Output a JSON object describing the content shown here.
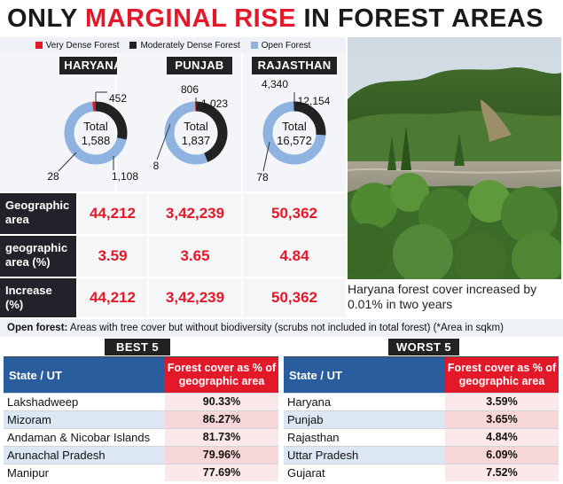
{
  "headline": {
    "part1": "ONLY ",
    "part2": "MARGINAL RISE",
    "part3": " IN FOREST AREAS"
  },
  "colors": {
    "very_dense": "#e3192a",
    "moderately_dense": "#222222",
    "open": "#8fb3e0"
  },
  "legend": [
    "Very Dense Forest",
    "Moderately Dense Forest",
    "Open Forest"
  ],
  "chart_data": [
    {
      "type": "pie",
      "state": "HARYANA",
      "center_label": "Total",
      "total": "1,588",
      "series": [
        {
          "name": "Very Dense Forest",
          "value": 28,
          "label": "28"
        },
        {
          "name": "Moderately Dense Forest",
          "value": 452,
          "label": "452"
        },
        {
          "name": "Open Forest",
          "value": 1108,
          "label": "1,108"
        }
      ]
    },
    {
      "type": "pie",
      "state": "PUNJAB",
      "center_label": "Total",
      "total": "1,837",
      "series": [
        {
          "name": "Very Dense Forest",
          "value": 8,
          "label": "8"
        },
        {
          "name": "Moderately Dense Forest",
          "value": 806,
          "label": "806"
        },
        {
          "name": "Open Forest",
          "value": 1023,
          "label": "1,023"
        }
      ]
    },
    {
      "type": "pie",
      "state": "RAJASTHAN",
      "center_label": "Total",
      "total": "16,572",
      "series": [
        {
          "name": "Very Dense Forest",
          "value": 78,
          "label": "78"
        },
        {
          "name": "Moderately Dense Forest",
          "value": 4340,
          "label": "4,340"
        },
        {
          "name": "Open Forest",
          "value": 12154,
          "label": "12,154"
        }
      ]
    },
    {
      "type": "table",
      "rows": [
        {
          "label": "Geographic area",
          "values": [
            "44,212",
            "3,42,239",
            "50,362"
          ]
        },
        {
          "label": "geographic area (%)",
          "values": [
            "3.59",
            "3.65",
            "4.84"
          ]
        },
        {
          "label": "Increase (%)",
          "values": [
            "44,212",
            "3,42,239",
            "50,362"
          ]
        }
      ]
    },
    {
      "type": "table",
      "title": "BEST 5",
      "columns": [
        "State / UT",
        "Forest cover as % of geographic area"
      ],
      "rows": [
        [
          "Lakshadweep",
          "90.33%"
        ],
        [
          "Mizoram",
          "86.27%"
        ],
        [
          "Andaman & Nicobar Islands",
          "81.73%"
        ],
        [
          "Arunachal Pradesh",
          "79.96%"
        ],
        [
          "Manipur",
          "77.69%"
        ]
      ]
    },
    {
      "type": "table",
      "title": "WORST 5",
      "columns": [
        "State / UT",
        "Forest cover as % of geographic area"
      ],
      "rows": [
        [
          "Haryana",
          "3.59%"
        ],
        [
          "Punjab",
          "3.65%"
        ],
        [
          "Rajasthan",
          "4.84%"
        ],
        [
          "Uttar Pradesh",
          "6.09%"
        ],
        [
          "Gujarat",
          "7.52%"
        ]
      ]
    }
  ],
  "row_labels": {
    "r0a": "Geographic",
    "r0b": "area",
    "r1a": "geographic",
    "r1b": "area (%)",
    "r2a": "Increase",
    "r2b": "(%)"
  },
  "caption": "Haryana forest cover increased by 0.01% in two years",
  "footnote": {
    "bold": "Open forest:",
    "text": " Areas with tree cover but without biodiversity (scrubs not included in total forest)  (*Area in sqkm)"
  },
  "best": {
    "title": "BEST 5",
    "col_state": "State / UT",
    "col_cover": "Forest cover as % of geographic area",
    "rows": [
      {
        "state": "Lakshadweep",
        "value": "90.33%"
      },
      {
        "state": "Mizoram",
        "value": "86.27%"
      },
      {
        "state": "Andaman & Nicobar Islands",
        "value": "81.73%"
      },
      {
        "state": "Arunachal Pradesh",
        "value": "79.96%"
      },
      {
        "state": "Manipur",
        "value": "77.69%"
      }
    ]
  },
  "worst": {
    "title": "WORST 5",
    "col_state": "State / UT",
    "col_cover": "Forest cover as % of geographic area",
    "rows": [
      {
        "state": "Haryana",
        "value": "3.59%"
      },
      {
        "state": "Punjab",
        "value": "3.65%"
      },
      {
        "state": "Rajasthan",
        "value": "4.84%"
      },
      {
        "state": "Uttar Pradesh",
        "value": "6.09%"
      },
      {
        "state": "Gujarat",
        "value": "7.52%"
      }
    ]
  }
}
